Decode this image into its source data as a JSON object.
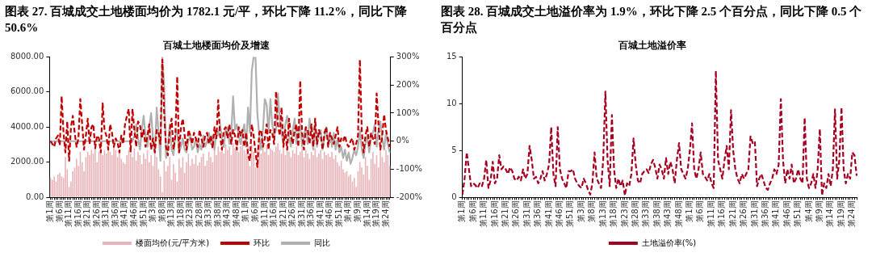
{
  "chart_data": [
    {
      "type": "bar",
      "title": "图表 27. 百城成交土地楼面均价为 1782.1 元/平，环比下降 11.2%，同比下降 50.6%",
      "subtitle": "百城土地楼面均价及增速",
      "categories": [
        "第1周",
        null,
        null,
        null,
        null,
        "第6周",
        null,
        null,
        null,
        null,
        "第11周",
        null,
        null,
        null,
        null,
        "第16周",
        null,
        null,
        null,
        null,
        "第21周",
        null,
        null,
        null,
        null,
        "第26周",
        null,
        null,
        null,
        null,
        "第31周",
        null,
        null,
        null,
        null,
        "第36周",
        null,
        null,
        null,
        null,
        "第41周",
        null,
        null,
        null,
        null,
        "第46周",
        null,
        null,
        null,
        null,
        "第51周",
        null,
        null,
        null,
        null,
        "第3周",
        null,
        null,
        null,
        null,
        "第8周",
        null,
        null,
        null,
        null,
        "第13周",
        null,
        null,
        null,
        null,
        "第18周",
        null,
        null,
        null,
        null,
        "第23周",
        null,
        null,
        null,
        null,
        "第28周",
        null,
        null,
        null,
        null,
        "第33周",
        null,
        null,
        null,
        null,
        "第38周",
        null,
        null,
        null,
        null,
        "第43周",
        null,
        null,
        null,
        null,
        "第48周",
        null,
        null,
        null,
        null,
        "第1周",
        null,
        null,
        null,
        null,
        "第6周",
        null,
        null,
        null,
        null,
        "第11周",
        null,
        null,
        null,
        null,
        "第16周",
        null,
        null,
        null,
        null,
        "第21周",
        null,
        null,
        null,
        null,
        "第26周",
        null,
        null,
        null,
        null,
        "第31周",
        null,
        null,
        null,
        null,
        "第36周",
        null,
        null,
        null,
        null,
        "第41周",
        null,
        null,
        null,
        null,
        "第46周",
        null,
        null,
        null,
        null,
        "第51周",
        null,
        null,
        null,
        null,
        "第4周",
        null,
        null,
        null,
        null,
        "第9周",
        null,
        null,
        null,
        null,
        "第14周",
        null,
        null,
        null,
        null,
        "第19周",
        null,
        null,
        null,
        null,
        "第24周",
        null,
        null
      ],
      "ylim": [
        0,
        8000
      ],
      "yticks": [
        {
          "value": 0,
          "label": "0.00"
        },
        {
          "value": 2000,
          "label": "2000.00"
        },
        {
          "value": 4000,
          "label": "4000.00"
        },
        {
          "value": 6000,
          "label": "6000.00"
        },
        {
          "value": 8000,
          "label": "8000.00"
        }
      ],
      "y2lim": [
        -200,
        300
      ],
      "y2ticks": [
        {
          "value": -200,
          "label": "-200%"
        },
        {
          "value": -100,
          "label": "-100%"
        },
        {
          "value": 0,
          "label": "0%"
        },
        {
          "value": 100,
          "label": "100%"
        },
        {
          "value": 200,
          "label": "200%"
        },
        {
          "value": 300,
          "label": "300%"
        }
      ],
      "legend": "bottom",
      "series": [
        {
          "name": "楼面均价(元/平方米)",
          "color": "#e8b4b8",
          "values": [
            1100,
            1000,
            1200,
            900,
            1300,
            1400,
            1200,
            1100,
            2300,
            1600,
            600,
            900,
            1500,
            1700,
            2200,
            1800,
            2600,
            2000,
            1500,
            2300,
            2600,
            2400,
            2700,
            2500,
            2800,
            2000,
            2600,
            2900,
            2400,
            2700,
            2500,
            2800,
            2600,
            2400,
            2900,
            2700,
            2300,
            2600,
            2200,
            2000,
            1900,
            2400,
            2700,
            2500,
            2300,
            2800,
            2100,
            2600,
            2400,
            1900,
            2500,
            2200,
            2700,
            2000,
            2400,
            1800,
            2500,
            2300,
            1600,
            1200,
            300,
            2100,
            1500,
            1800,
            2300,
            1000,
            1900,
            1400,
            900,
            2200,
            1700,
            2300,
            1400,
            2000,
            2500,
            1800,
            2200,
            1900,
            2400,
            1800,
            2000,
            2300,
            2500,
            1800,
            2100,
            2600,
            2300,
            2000,
            2700,
            2400,
            2900,
            2600,
            2800,
            2500,
            3000,
            2700,
            2900,
            2400,
            3100,
            2800,
            3000,
            2600,
            2900,
            3200,
            2700,
            2500,
            2900,
            1800,
            3000,
            2600,
            1700,
            2800,
            3100,
            2500,
            2900,
            2600,
            3000,
            2400,
            2800,
            2700,
            2600,
            2900,
            3100,
            2700,
            2500,
            3000,
            2400,
            2800,
            2600,
            2300,
            2700,
            2500,
            2900,
            2400,
            2600,
            2800,
            2300,
            2700,
            2500,
            2200,
            2600,
            2400,
            2800,
            2300,
            2500,
            2700,
            2200,
            2600,
            2400,
            2500,
            2300,
            2600,
            2200,
            2400,
            2000,
            1800,
            2100,
            1600,
            1400,
            1500,
            1200,
            1300,
            900,
            1100,
            600,
            1500,
            2000,
            1700,
            1300,
            2300,
            1800,
            1000,
            2200,
            2600,
            1900,
            2400,
            1700,
            2800,
            2300,
            2000,
            2700,
            2400,
            1800
          ]
        },
        {
          "name": "环比",
          "type": "line",
          "axis": "y2",
          "line_style": "dashed",
          "color": "#c00000",
          "values": [
            0,
            -10,
            -20,
            10,
            20,
            -15,
            160,
            30,
            -40,
            70,
            -70,
            50,
            90,
            30,
            -20,
            10,
            150,
            60,
            -30,
            20,
            80,
            -10,
            50,
            60,
            -25,
            20,
            10,
            -40,
            135,
            40,
            20,
            -30,
            60,
            30,
            -20,
            10,
            -5,
            -40,
            20,
            -10,
            60,
            90,
            115,
            -40,
            115,
            40,
            -20,
            70,
            60,
            10,
            40,
            -20,
            20,
            60,
            -30,
            10,
            -40,
            40,
            30,
            -10,
            290,
            100,
            -20,
            -50,
            40,
            80,
            -30,
            20,
            230,
            -40,
            50,
            80,
            20,
            -30,
            40,
            20,
            -10,
            30,
            10,
            -20,
            40,
            10,
            -20,
            20,
            30,
            -10,
            20,
            -25,
            50,
            10,
            146,
            20,
            -30,
            40,
            50,
            10,
            60,
            -10,
            40,
            20,
            -30,
            50,
            20,
            40,
            -20,
            30,
            -50,
            -70,
            60,
            20,
            -40,
            -92,
            30,
            40,
            -20,
            10,
            60,
            -30,
            40,
            30,
            -10,
            177,
            60,
            20,
            120,
            -20,
            40,
            -30,
            80,
            20,
            -10,
            40,
            60,
            -20,
            215,
            30,
            -30,
            50,
            40,
            -10,
            60,
            -20,
            80,
            -10,
            40,
            20,
            -30,
            30,
            50,
            -20,
            30,
            10,
            -10,
            20,
            50,
            -20,
            10,
            0,
            20,
            -10,
            -20,
            0,
            10,
            -30,
            -10,
            20,
            290,
            40,
            -40,
            20,
            50,
            -20,
            30,
            10,
            -10,
            170,
            60,
            -30,
            20,
            95,
            40,
            10,
            -20
          ]
        },
        {
          "name": "同比",
          "type": "line",
          "axis": "y2",
          "line_style": "solid",
          "color": "#b0b0b0",
          "values": [
            0,
            0,
            0,
            0,
            0,
            0,
            0,
            0,
            0,
            0,
            0,
            0,
            0,
            0,
            0,
            0,
            0,
            0,
            0,
            0,
            0,
            0,
            0,
            0,
            0,
            0,
            0,
            0,
            0,
            0,
            0,
            0,
            0,
            0,
            0,
            0,
            0,
            0,
            0,
            0,
            0,
            0,
            0,
            0,
            0,
            20,
            60,
            10,
            -30,
            40,
            90,
            20,
            -20,
            50,
            100,
            10,
            -40,
            120,
            30,
            -70,
            300,
            200,
            -60,
            -20,
            60,
            -30,
            -50,
            20,
            40,
            -40,
            -20,
            10,
            -30,
            -40,
            0,
            20,
            -30,
            -20,
            10,
            -40,
            -10,
            -30,
            20,
            -20,
            0,
            30,
            -10,
            20,
            -30,
            40,
            20,
            60,
            10,
            -20,
            40,
            50,
            -10,
            30,
            160,
            40,
            60,
            20,
            -10,
            30,
            60,
            -20,
            120,
            30,
            250,
            300,
            300,
            100,
            20,
            -30,
            40,
            150,
            130,
            30,
            150,
            60,
            20,
            40,
            170,
            80,
            30,
            -10,
            60,
            90,
            20,
            -20,
            40,
            80,
            -10,
            30,
            60,
            -20,
            20,
            50,
            -10,
            80,
            30,
            -30,
            60,
            -20,
            20,
            40,
            -30,
            10,
            50,
            -10,
            20,
            -20,
            30,
            -30,
            10,
            -40,
            -20,
            -60,
            -30,
            -70,
            -40,
            -80,
            -60,
            -30,
            -50,
            -20,
            40,
            -30,
            -60,
            -10,
            20,
            -40,
            10,
            30,
            60,
            -20,
            40,
            70,
            10,
            -30,
            30,
            -10,
            -40
          ]
        }
      ]
    },
    {
      "type": "line",
      "title": "图表 28. 百城成交土地溢价率为 1.9%，环比下降 2.5 个百分点，同比下降 0.5 个百分点",
      "subtitle": "百城土地溢价率",
      "categories": [
        "第1周",
        null,
        null,
        null,
        null,
        "第6周",
        null,
        null,
        null,
        null,
        "第11周",
        null,
        null,
        null,
        null,
        "第16周",
        null,
        null,
        null,
        null,
        "第21周",
        null,
        null,
        null,
        null,
        "第26周",
        null,
        null,
        null,
        null,
        "第31周",
        null,
        null,
        null,
        null,
        "第36周",
        null,
        null,
        null,
        null,
        "第41周",
        null,
        null,
        null,
        null,
        "第46周",
        null,
        null,
        null,
        null,
        "第51周",
        null,
        null,
        null,
        null,
        "第3周",
        null,
        null,
        null,
        null,
        "第8周",
        null,
        null,
        null,
        null,
        "第13周",
        null,
        null,
        null,
        null,
        "第18周",
        null,
        null,
        null,
        null,
        "第23周",
        null,
        null,
        null,
        null,
        "第28周",
        null,
        null,
        null,
        null,
        "第33周",
        null,
        null,
        null,
        null,
        "第38周",
        null,
        null,
        null,
        null,
        "第43周",
        null,
        null,
        null,
        null,
        "第48周",
        null,
        null,
        null,
        null,
        "第1周",
        null,
        null,
        null,
        null,
        "第6周",
        null,
        null,
        null,
        null,
        "第11周",
        null,
        null,
        null,
        null,
        "第16周",
        null,
        null,
        null,
        null,
        "第21周",
        null,
        null,
        null,
        null,
        "第26周",
        null,
        null,
        null,
        null,
        "第31周",
        null,
        null,
        null,
        null,
        "第36周",
        null,
        null,
        null,
        null,
        "第41周",
        null,
        null,
        null,
        null,
        "第46周",
        null,
        null,
        null,
        null,
        "第51周",
        null,
        null,
        null,
        null,
        "第4周",
        null,
        null,
        null,
        null,
        "第9周",
        null,
        null,
        null,
        null,
        "第14周",
        null,
        null,
        null,
        null,
        "第19周",
        null,
        null,
        null,
        null,
        "第24周",
        null,
        null
      ],
      "ylim": [
        0,
        15
      ],
      "yticks": [
        0,
        5,
        10,
        15
      ],
      "legend": "bottom",
      "line_style": "dashed",
      "series": [
        {
          "name": "土地溢价率(%)",
          "color": "#a50021",
          "values": [
            0.3,
            2,
            4.8,
            3,
            1.2,
            1.5,
            1.3,
            1,
            1.5,
            1.2,
            2,
            4,
            1,
            1.8,
            3.8,
            1.5,
            2,
            4.5,
            3,
            3.3,
            3,
            2.5,
            3.2,
            2.8,
            2,
            1.8,
            2.2,
            1.8,
            3,
            2,
            2.5,
            5.5,
            4,
            2,
            2.2,
            1.5,
            2,
            2.8,
            1.8,
            2.5,
            3.5,
            7.5,
            2.5,
            1.2,
            7.5,
            3,
            2,
            1.5,
            1,
            2.8,
            2.8,
            3,
            2,
            1.5,
            1.2,
            1,
            2,
            1.5,
            0.8,
            0.3,
            1.5,
            4.8,
            2,
            1.5,
            1,
            4,
            11.3,
            4,
            1.2,
            8.8,
            3,
            1,
            2,
            1.2,
            1.8,
            0.2,
            1.5,
            1.2,
            2.5,
            6.3,
            3.5,
            1.8,
            1.5,
            2.5,
            2.8,
            3,
            2.6,
            3.5,
            4,
            3.2,
            2,
            3.5,
            3,
            2,
            4.2,
            2.5,
            3.8,
            3,
            1.5,
            4,
            5.8,
            3,
            2.5,
            2,
            3,
            5,
            7.9,
            3,
            2,
            3,
            4.8,
            2.5,
            2.2,
            1.8,
            2.5,
            1.5,
            1,
            13.5,
            4,
            3,
            2,
            4,
            5.5,
            3,
            9.3,
            5,
            3,
            2,
            1.5,
            2.5,
            2,
            2.5,
            3,
            6.5,
            5.8,
            6,
            1.2,
            2,
            2.5,
            1.8,
            1,
            0.8,
            1.5,
            2,
            3,
            2.5,
            3.5,
            10.5,
            4,
            1.5,
            3,
            2,
            3.5,
            1.5,
            2,
            3,
            2,
            1.5,
            8.5,
            2,
            1,
            1.5,
            2.5,
            1,
            3,
            7.3,
            0.2,
            1.5,
            1,
            2.5,
            1.2,
            3,
            9.4,
            2,
            4,
            9.6,
            3,
            1.5,
            2.5,
            2,
            4.8,
            4.5,
            2.3
          ]
        }
      ]
    }
  ]
}
